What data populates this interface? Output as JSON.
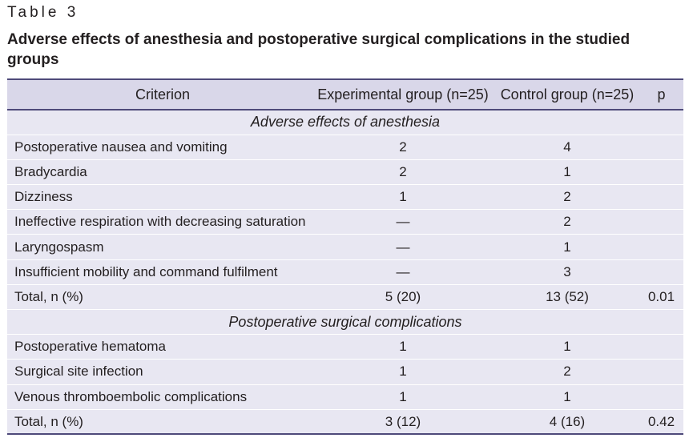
{
  "table_label": "Table 3",
  "title": "Adverse effects of anesthesia and postoperative surgical complications in the studied groups",
  "columns": {
    "criterion": "Criterion",
    "experimental": "Experimental group (n=25)",
    "control": "Control group (n=25)",
    "p": "p"
  },
  "sections": [
    {
      "heading": "Adverse effects of anesthesia",
      "rows": [
        {
          "criterion": "Postoperative nausea and vomiting",
          "experimental": "2",
          "control": "4",
          "p": ""
        },
        {
          "criterion": "Bradycardia",
          "experimental": "2",
          "control": "1",
          "p": ""
        },
        {
          "criterion": "Dizziness",
          "experimental": "1",
          "control": "2",
          "p": ""
        },
        {
          "criterion": "Ineffective respiration with decreasing saturation",
          "experimental": "—",
          "control": "2",
          "p": ""
        },
        {
          "criterion": "Laryngospasm",
          "experimental": "—",
          "control": "1",
          "p": ""
        },
        {
          "criterion": "Insufficient mobility and command fulfilment",
          "experimental": "—",
          "control": "3",
          "p": ""
        },
        {
          "criterion": "Total, n (%)",
          "experimental": "5 (20)",
          "control": "13 (52)",
          "p": "0.01"
        }
      ]
    },
    {
      "heading": "Postoperative surgical complications",
      "rows": [
        {
          "criterion": "Postoperative hematoma",
          "experimental": "1",
          "control": "1",
          "p": ""
        },
        {
          "criterion": "Surgical site infection",
          "experimental": "1",
          "control": "2",
          "p": ""
        },
        {
          "criterion": "Venous thromboembolic complications",
          "experimental": "1",
          "control": "1",
          "p": ""
        },
        {
          "criterion": "Total, n (%)",
          "experimental": "3 (12)",
          "control": "4 (16)",
          "p": "0.42"
        }
      ]
    }
  ]
}
